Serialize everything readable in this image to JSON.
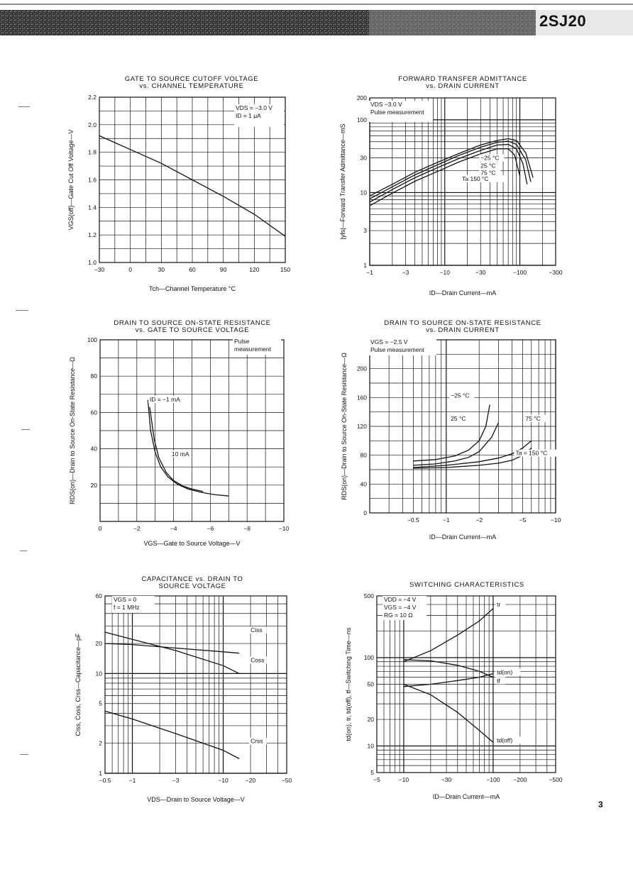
{
  "page": {
    "part_number": "2SJ20",
    "page_number": "3"
  },
  "chart_data": [
    {
      "id": "c1",
      "type": "line",
      "title_lines": [
        "GATE TO SOURCE CUTOFF VOLTAGE",
        "vs. CHANNEL TEMPERATURE"
      ],
      "xlabel": "Tch—Channel Temperature  °C",
      "ylabel": "VGS(off)—Gate Cut Off Voltage—V",
      "x_scale": "linear",
      "y_scale": "linear",
      "xlim": [
        -30,
        150
      ],
      "ylim": [
        1.0,
        2.2
      ],
      "x_ticks": [
        -30,
        0,
        30,
        60,
        90,
        120,
        150
      ],
      "x_tick_labels": [
        "−30",
        "0",
        "30",
        "60",
        "90",
        "120",
        "150"
      ],
      "y_ticks": [
        1.0,
        1.2,
        1.4,
        1.6,
        1.8,
        2.0,
        2.2
      ],
      "y_tick_labels": [
        "1.0",
        "1.2",
        "1.4",
        "1.6",
        "1.8",
        "2.0",
        "2.2"
      ],
      "conditions": [
        "VDS = −3.0 V",
        "ID = 1 μA"
      ],
      "series": [
        {
          "x": [
            -30,
            0,
            30,
            60,
            90,
            120,
            150
          ],
          "y": [
            1.92,
            1.82,
            1.72,
            1.6,
            1.48,
            1.35,
            1.19
          ]
        }
      ],
      "labels": []
    },
    {
      "id": "c2",
      "type": "line",
      "title_lines": [
        "FORWARD TRANSFER ADMITTANCE",
        "vs. DRAIN CURRENT"
      ],
      "xlabel": "ID—Drain Current—mA",
      "ylabel": "|yfs|—Forward Transfer Admittance—mS",
      "x_scale": "log",
      "y_scale": "log",
      "xlim": [
        1,
        300
      ],
      "ylim": [
        1,
        200
      ],
      "x_ticks": [
        1,
        3,
        10,
        30,
        100,
        300
      ],
      "x_tick_labels": [
        "−1",
        "−3",
        "−10",
        "−30",
        "−100",
        "−300"
      ],
      "y_ticks": [
        1,
        3,
        10,
        30,
        100,
        200
      ],
      "y_tick_labels": [
        "1",
        "3",
        "10",
        "30",
        "100",
        "200"
      ],
      "conditions": [
        "VDS  −3.0 V",
        "Pulse measurement"
      ],
      "series": [
        {
          "name": "−25 °C",
          "x": [
            1,
            2,
            4,
            8,
            15,
            30,
            50,
            70,
            90,
            120,
            150
          ],
          "y": [
            9,
            13,
            19,
            26,
            34,
            45,
            52,
            55,
            52,
            35,
            16
          ]
        },
        {
          "name": "25 °C",
          "x": [
            1,
            2,
            4,
            8,
            15,
            30,
            50,
            70,
            90,
            120,
            140
          ],
          "y": [
            8.2,
            12,
            17.5,
            24,
            32,
            42,
            49,
            51,
            46,
            28,
            14
          ]
        },
        {
          "name": "75 °C",
          "x": [
            1,
            2,
            4,
            8,
            15,
            30,
            50,
            70,
            90,
            110,
            125
          ],
          "y": [
            7.4,
            11,
            16,
            22,
            29,
            38,
            45,
            46,
            40,
            25,
            13
          ]
        },
        {
          "name": "150 °C",
          "x": [
            1,
            2,
            4,
            8,
            15,
            30,
            50,
            70,
            85,
            100
          ],
          "y": [
            6.6,
            9.8,
            14.3,
            19.5,
            26,
            34,
            40,
            40,
            33,
            17
          ]
        }
      ],
      "labels": [
        {
          "text": "−25 °C",
          "x": 30,
          "y": 28
        },
        {
          "text": "25 °C",
          "x": 30,
          "y": 22
        },
        {
          "text": "75 °C",
          "x": 30,
          "y": 17.5
        },
        {
          "text": "Ta   150 °C",
          "x": 17,
          "y": 14.5
        }
      ]
    },
    {
      "id": "c3",
      "type": "line",
      "title_lines": [
        "DRAIN TO SOURCE ON-STATE RESISTANCE",
        "vs. GATE TO SOURCE VOLTAGE"
      ],
      "xlabel": "VGS—Gate to Source Voltage—V",
      "ylabel": "RDS(on)—Drain to Source On-State Resistance—Ω",
      "x_scale": "linear",
      "y_scale": "linear",
      "xlim": [
        0,
        10
      ],
      "ylim": [
        0,
        100
      ],
      "x_ticks": [
        0,
        2,
        4,
        6,
        8,
        10
      ],
      "x_tick_labels": [
        "0",
        "−2",
        "−4",
        "−6",
        "−8",
        "−10"
      ],
      "y_ticks": [
        0,
        20,
        40,
        60,
        80,
        100
      ],
      "y_tick_labels": [
        "",
        "20",
        "40",
        "60",
        "80",
        "100"
      ],
      "conditions": [
        "Pulse",
        "measurement"
      ],
      "series": [
        {
          "name": "ID = −1 mA",
          "x": [
            2.6,
            2.75,
            3.0,
            3.3,
            3.7,
            4.2,
            4.8,
            5.5,
            6.2,
            7.0
          ],
          "y": [
            67,
            50,
            38,
            30,
            24.5,
            20.5,
            17.8,
            16.0,
            14.8,
            14.0
          ]
        },
        {
          "name": "10 mA",
          "x": [
            2.7,
            2.95,
            3.2,
            3.6,
            4.0,
            4.5,
            5.0,
            5.6
          ],
          "y": [
            63,
            45,
            35,
            27,
            22.5,
            19.5,
            17.8,
            16.5
          ]
        }
      ],
      "labels": [
        {
          "text": "ID = −1 mA",
          "x": 2.7,
          "y": 66
        },
        {
          "text": "10 mA",
          "x": 3.9,
          "y": 36
        }
      ]
    },
    {
      "id": "c4",
      "type": "line",
      "title_lines": [
        "DRAIN TO SOURCE ON-STATE RESISTANCE",
        "vs. DRAIN CURRENT"
      ],
      "xlabel": "ID—Drain Current—mA",
      "ylabel": "RDS(on)—Drain to Source On-State Resistance—Ω",
      "x_scale": "log",
      "y_scale": "linear",
      "xlim": [
        0.2,
        10
      ],
      "ylim": [
        0,
        240
      ],
      "x_ticks": [
        0.5,
        1,
        2,
        5,
        10
      ],
      "x_tick_labels": [
        "−0.5",
        "−1",
        "−2",
        "−5",
        "−10"
      ],
      "y_ticks": [
        0,
        40,
        80,
        120,
        160,
        200
      ],
      "y_tick_labels": [
        "0",
        "40",
        "80",
        "120",
        "160",
        "200"
      ],
      "conditions": [
        "VGS = −2.5 V",
        "Pulse measurement"
      ],
      "series": [
        {
          "name": "−25 °C",
          "x": [
            0.5,
            0.8,
            1.2,
            1.6,
            2.0,
            2.3,
            2.5
          ],
          "y": [
            72,
            74,
            79,
            87,
            100,
            120,
            150
          ]
        },
        {
          "name": "25 °C",
          "x": [
            0.5,
            0.8,
            1.2,
            1.6,
            2.0,
            2.6,
            3.0
          ],
          "y": [
            66,
            68,
            72,
            77,
            85,
            105,
            125
          ]
        },
        {
          "name": "75 °C",
          "x": [
            0.5,
            1,
            2,
            3,
            4,
            5,
            6
          ],
          "y": [
            63,
            66,
            71,
            76,
            82,
            90,
            100
          ]
        },
        {
          "name": "Ta = 150 °C",
          "x": [
            0.5,
            1,
            2,
            3,
            4,
            5,
            6
          ],
          "y": [
            62,
            63,
            66,
            69,
            73,
            80,
            90
          ]
        }
      ],
      "labels": [
        {
          "text": "−25 °C",
          "x": 1.1,
          "y": 160
        },
        {
          "text": "25 °C",
          "x": 1.1,
          "y": 128
        },
        {
          "text": "75 °C",
          "x": 5.3,
          "y": 128
        },
        {
          "text": "Ta = 150 °C",
          "x": 4.3,
          "y": 80
        }
      ]
    },
    {
      "id": "c5",
      "type": "line",
      "title_lines": [
        "CAPACITANCE vs. DRAIN TO",
        "SOURCE VOLTAGE"
      ],
      "xlabel": "VDS—Drain to Source Voltage—V",
      "ylabel": "Ciss, Coss, Crss—Capacitance—pF",
      "x_scale": "log",
      "y_scale": "log",
      "xlim": [
        0.5,
        50
      ],
      "ylim": [
        1,
        60
      ],
      "x_ticks": [
        0.5,
        1,
        3,
        10,
        20,
        50
      ],
      "x_tick_labels": [
        "−0.5",
        "−1",
        "−3",
        "−10",
        "−20",
        "−50"
      ],
      "y_ticks": [
        1,
        2,
        5,
        10,
        20,
        60
      ],
      "y_tick_labels": [
        "1",
        "2",
        "5",
        "10",
        "20",
        "60"
      ],
      "conditions": [
        "VGS = 0",
        "f = 1 MHz"
      ],
      "series": [
        {
          "name": "Ciss",
          "x": [
            0.5,
            1,
            3,
            10,
            15
          ],
          "y": [
            20,
            19.5,
            18,
            16.5,
            16
          ]
        },
        {
          "name": "Coss",
          "x": [
            0.5,
            1,
            3,
            10,
            15
          ],
          "y": [
            26,
            22,
            17,
            12,
            10
          ]
        },
        {
          "name": "Crss",
          "x": [
            0.5,
            1,
            3,
            10,
            15
          ],
          "y": [
            4.2,
            3.5,
            2.5,
            1.7,
            1.4
          ]
        }
      ],
      "labels": [
        {
          "text": "Ciss",
          "x": 20,
          "y": 26
        },
        {
          "text": "Coss",
          "x": 20,
          "y": 13
        },
        {
          "text": "Crss",
          "x": 20,
          "y": 2
        }
      ]
    },
    {
      "id": "c6",
      "type": "line",
      "title_lines": [
        "SWITCHING CHARACTERISTICS"
      ],
      "xlabel": "ID—Drain Current—mA",
      "ylabel": "td(on), tr, td(off), tf—Switching Time—ns",
      "x_scale": "log",
      "y_scale": "log",
      "xlim": [
        5,
        500
      ],
      "ylim": [
        5,
        500
      ],
      "x_ticks": [
        5,
        10,
        30,
        100,
        200,
        500
      ],
      "x_tick_labels": [
        "−5",
        "−10",
        "−30",
        "−100",
        "−200",
        "−500"
      ],
      "y_ticks": [
        5,
        10,
        20,
        50,
        100,
        500
      ],
      "y_tick_labels": [
        "5",
        "10",
        "20",
        "50",
        "100",
        "500"
      ],
      "conditions": [
        "VDD = −4 V",
        "VGS = −4 V",
        "RG = 10 Ω"
      ],
      "series": [
        {
          "name": "tr",
          "x": [
            10,
            20,
            40,
            70,
            100
          ],
          "y": [
            90,
            120,
            180,
            260,
            360
          ]
        },
        {
          "name": "td(on)",
          "x": [
            10,
            20,
            40,
            70,
            100
          ],
          "y": [
            95,
            92,
            82,
            70,
            60
          ]
        },
        {
          "name": "tf",
          "x": [
            10,
            20,
            40,
            70,
            100
          ],
          "y": [
            47,
            50,
            55,
            60,
            66
          ]
        },
        {
          "name": "td(off)",
          "x": [
            10,
            20,
            40,
            70,
            100
          ],
          "y": [
            50,
            38,
            24,
            15,
            11
          ]
        }
      ],
      "labels": [
        {
          "text": "tr",
          "x": 110,
          "y": 380
        },
        {
          "text": "td(on)",
          "x": 110,
          "y": 65
        },
        {
          "text": "tf",
          "x": 110,
          "y": 52
        },
        {
          "text": "td(off)",
          "x": 110,
          "y": 11
        }
      ]
    }
  ]
}
